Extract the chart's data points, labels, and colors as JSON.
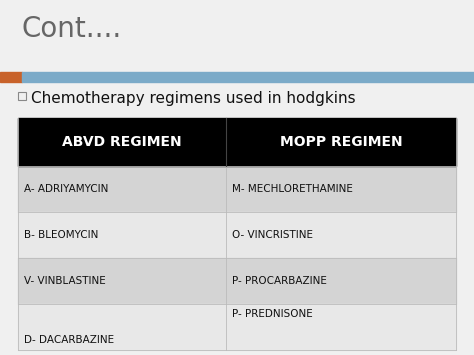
{
  "title": "Cont....",
  "title_color": "#666666",
  "title_fontsize": 20,
  "subtitle": "Chemotherapy regimens used in hodgkins",
  "subtitle_fontsize": 11,
  "bg_color": "#f0f0f0",
  "stripe_color_orange": "#c8622a",
  "stripe_color_blue": "#7baac8",
  "header_bg": "#000000",
  "header_text_color": "#ffffff",
  "header_left": "ABVD REGIMEN",
  "header_right": "MOPP REGIMEN",
  "header_fontsize": 10,
  "row_bg_odd": "#d4d4d4",
  "row_bg_even": "#e8e8e8",
  "row_text_color": "#111111",
  "row_fontsize": 7.5,
  "rows_left": [
    "A- ADRIYAMYCIN",
    "B- BLEOMYCIN",
    "V- VINBLASTINE",
    "D- DACARBAZINE"
  ],
  "rows_right": [
    "M- MECHLORETHAMINE",
    "O- VINCRISTINE",
    "P- PROCARBAZINE",
    "P- PREDNISONE"
  ],
  "last_row_right_top": true
}
